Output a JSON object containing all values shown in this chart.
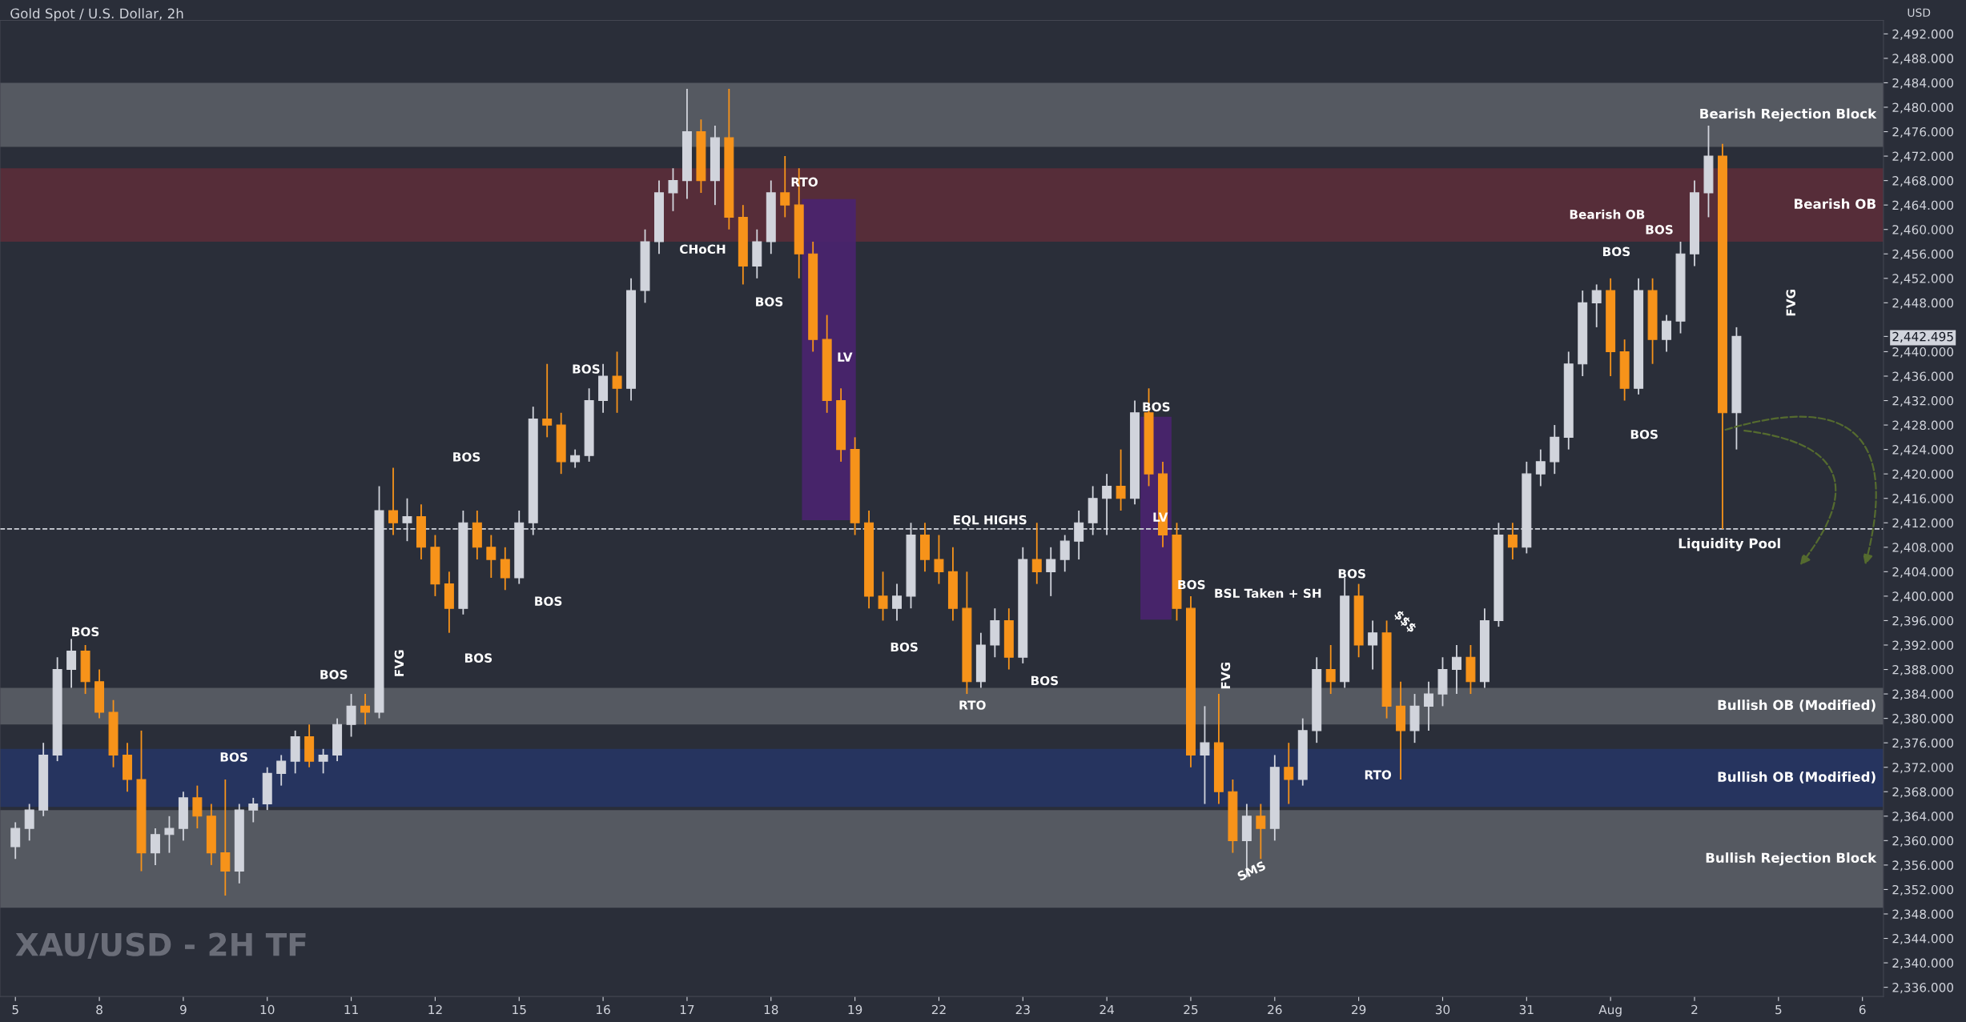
{
  "chart_data": {
    "type": "candlestick",
    "title": "Gold Spot / U.S. Dollar, 2h",
    "ylabel": "USD",
    "categories": [
      "5",
      null,
      null,
      null,
      null,
      null,
      "8",
      null,
      null,
      null,
      null,
      null,
      "9",
      null,
      null,
      null,
      null,
      null,
      "10",
      null,
      null,
      null,
      null,
      null,
      "11",
      null,
      null,
      null,
      null,
      null,
      "12",
      null,
      null,
      null,
      null,
      null,
      "15",
      null,
      null,
      null,
      null,
      null,
      "16",
      null,
      null,
      null,
      null,
      null,
      "17",
      null,
      null,
      null,
      null,
      null,
      "18",
      null,
      null,
      null,
      null,
      null,
      "19",
      null,
      null,
      null,
      null,
      null,
      "22",
      null,
      null,
      null,
      null,
      null,
      "23",
      null,
      null,
      null,
      null,
      null,
      "24",
      null,
      null,
      null,
      null,
      null,
      "25",
      null,
      null,
      null,
      null,
      null,
      "26",
      null,
      null,
      null,
      null,
      null,
      "29",
      null,
      null,
      null,
      null,
      null,
      "30",
      null,
      null,
      null,
      null,
      null,
      "31",
      null,
      null,
      null,
      null,
      null,
      "Aug",
      null,
      null,
      null,
      null,
      null,
      "2",
      null,
      null,
      null,
      null,
      null,
      "5",
      null,
      null,
      null,
      null,
      null,
      "6",
      null
    ],
    "colors": [
      "#d1d4dc",
      "#d1d4dc",
      "#d1d4dc",
      "#d1d4dc",
      "#d1d4dc",
      "#f7931a",
      "#f7931a",
      "#f7931a",
      "#f7931a",
      "#f7931a",
      "#d1d4dc",
      "#d1d4dc",
      "#d1d4dc",
      "#f7931a",
      "#f7931a",
      "#f7931a",
      "#d1d4dc",
      "#d1d4dc",
      "#d1d4dc",
      "#d1d4dc",
      "#d1d4dc",
      "#f7931a",
      "#d1d4dc",
      "#d1d4dc",
      "#d1d4dc",
      "#f7931a",
      "#d1d4dc",
      "#f7931a",
      "#d1d4dc",
      "#f7931a",
      "#f7931a",
      "#f7931a",
      "#d1d4dc",
      "#f7931a",
      "#f7931a",
      "#f7931a",
      "#d1d4dc",
      "#d1d4dc",
      "#f7931a",
      "#f7931a",
      "#d1d4dc",
      "#d1d4dc",
      "#d1d4dc",
      "#f7931a",
      "#d1d4dc",
      "#d1d4dc",
      "#d1d4dc",
      "#d1d4dc",
      "#d1d4dc",
      "#f7931a",
      "#d1d4dc",
      "#f7931a",
      "#f7931a",
      "#d1d4dc",
      "#d1d4dc",
      "#f7931a",
      "#f7931a",
      "#f7931a",
      "#f7931a",
      "#f7931a",
      "#f7931a",
      "#f7931a",
      "#f7931a",
      "#d1d4dc",
      "#d1d4dc",
      "#f7931a",
      "#f7931a",
      "#f7931a",
      "#f7931a",
      "#d1d4dc",
      "#d1d4dc",
      "#f7931a",
      "#d1d4dc",
      "#f7931a",
      "#d1d4dc",
      "#d1d4dc",
      "#d1d4dc",
      "#d1d4dc",
      "#d1d4dc",
      "#f7931a",
      "#d1d4dc",
      "#f7931a",
      "#f7931a",
      "#f7931a",
      "#f7931a",
      "#d1d4dc",
      "#f7931a",
      "#f7931a",
      "#d1d4dc",
      "#f7931a",
      "#d1d4dc",
      "#f7931a",
      "#d1d4dc",
      "#d1d4dc",
      "#f7931a",
      "#d1d4dc",
      "#f7931a",
      "#d1d4dc",
      "#f7931a",
      "#f7931a",
      "#d1d4dc",
      "#d1d4dc",
      "#d1d4dc",
      "#d1d4dc",
      "#f7931a",
      "#d1d4dc",
      "#d1d4dc",
      "#f7931a",
      "#d1d4dc",
      "#d1d4dc",
      "#d1d4dc",
      "#d1d4dc",
      "#d1d4dc",
      "#d1d4dc",
      "#f7931a",
      "#f7931a",
      "#d1d4dc",
      "#f7931a",
      "#d1d4dc",
      "#d1d4dc",
      "#d1d4dc",
      "#d1d4dc",
      "#f7931a",
      "#d1d4dc",
      null,
      null,
      null,
      null,
      null,
      null,
      null,
      null,
      null,
      null
    ],
    "ohlc": [
      [
        2359,
        2363,
        2357,
        2362
      ],
      [
        2362,
        2366,
        2360,
        2365
      ],
      [
        2365,
        2376,
        2364,
        2374
      ],
      [
        2374,
        2390,
        2373,
        2388
      ],
      [
        2388,
        2393,
        2385,
        2391
      ],
      [
        2391,
        2392,
        2384,
        2386
      ],
      [
        2386,
        2388,
        2380,
        2381
      ],
      [
        2381,
        2383,
        2372,
        2374
      ],
      [
        2374,
        2376,
        2368,
        2370
      ],
      [
        2370,
        2378,
        2355,
        2358
      ],
      [
        2358,
        2362,
        2356,
        2361
      ],
      [
        2361,
        2364,
        2358,
        2362
      ],
      [
        2362,
        2368,
        2360,
        2367
      ],
      [
        2367,
        2369,
        2362,
        2364
      ],
      [
        2364,
        2366,
        2356,
        2358
      ],
      [
        2358,
        2370,
        2351,
        2355
      ],
      [
        2355,
        2366,
        2353,
        2365
      ],
      [
        2365,
        2367,
        2363,
        2366
      ],
      [
        2366,
        2372,
        2365,
        2371
      ],
      [
        2371,
        2374,
        2369,
        2373
      ],
      [
        2373,
        2378,
        2371,
        2377
      ],
      [
        2377,
        2379,
        2372,
        2373
      ],
      [
        2373,
        2375,
        2371,
        2374
      ],
      [
        2374,
        2380,
        2373,
        2379
      ],
      [
        2379,
        2384,
        2377,
        2382
      ],
      [
        2382,
        2384,
        2379,
        2381
      ],
      [
        2381,
        2418,
        2380,
        2414
      ],
      [
        2414,
        2421,
        2410,
        2412
      ],
      [
        2412,
        2416,
        2409,
        2413
      ],
      [
        2413,
        2415,
        2406,
        2408
      ],
      [
        2408,
        2410,
        2400,
        2402
      ],
      [
        2402,
        2404,
        2394,
        2398
      ],
      [
        2398,
        2414,
        2397,
        2412
      ],
      [
        2412,
        2414,
        2406,
        2408
      ],
      [
        2408,
        2410,
        2403,
        2406
      ],
      [
        2406,
        2408,
        2401,
        2403
      ],
      [
        2403,
        2414,
        2402,
        2412
      ],
      [
        2412,
        2431,
        2410,
        2429
      ],
      [
        2429,
        2438,
        2426,
        2428
      ],
      [
        2428,
        2430,
        2420,
        2422
      ],
      [
        2422,
        2424,
        2421,
        2423
      ],
      [
        2423,
        2434,
        2422,
        2432
      ],
      [
        2432,
        2438,
        2430,
        2436
      ],
      [
        2436,
        2440,
        2430,
        2434
      ],
      [
        2434,
        2452,
        2432,
        2450
      ],
      [
        2450,
        2460,
        2448,
        2458
      ],
      [
        2458,
        2468,
        2456,
        2466
      ],
      [
        2466,
        2470,
        2463,
        2468
      ],
      [
        2468,
        2483,
        2465,
        2476
      ],
      [
        2476,
        2478,
        2466,
        2468
      ],
      [
        2468,
        2477,
        2464,
        2475
      ],
      [
        2475,
        2483,
        2460,
        2462
      ],
      [
        2462,
        2464,
        2451,
        2454
      ],
      [
        2454,
        2460,
        2452,
        2458
      ],
      [
        2458,
        2468,
        2456,
        2466
      ],
      [
        2466,
        2472,
        2462,
        2464
      ],
      [
        2464,
        2470,
        2452,
        2456
      ],
      [
        2456,
        2458,
        2440,
        2442
      ],
      [
        2442,
        2446,
        2430,
        2432
      ],
      [
        2432,
        2434,
        2422,
        2424
      ],
      [
        2424,
        2426,
        2410,
        2412
      ],
      [
        2412,
        2414,
        2398,
        2400
      ],
      [
        2400,
        2404,
        2396,
        2398
      ],
      [
        2398,
        2402,
        2396,
        2400
      ],
      [
        2400,
        2412,
        2398,
        2410
      ],
      [
        2410,
        2412,
        2404,
        2406
      ],
      [
        2406,
        2410,
        2402,
        2404
      ],
      [
        2404,
        2408,
        2396,
        2398
      ],
      [
        2398,
        2404,
        2384,
        2386
      ],
      [
        2386,
        2394,
        2385,
        2392
      ],
      [
        2392,
        2398,
        2390,
        2396
      ],
      [
        2396,
        2398,
        2388,
        2390
      ],
      [
        2390,
        2408,
        2389,
        2406
      ],
      [
        2406,
        2412,
        2402,
        2404
      ],
      [
        2404,
        2408,
        2400,
        2406
      ],
      [
        2406,
        2410,
        2404,
        2409
      ],
      [
        2409,
        2414,
        2406,
        2412
      ],
      [
        2412,
        2418,
        2410,
        2416
      ],
      [
        2416,
        2420,
        2410,
        2418
      ],
      [
        2418,
        2424,
        2414,
        2416
      ],
      [
        2416,
        2432,
        2415,
        2430
      ],
      [
        2430,
        2434,
        2418,
        2420
      ],
      [
        2420,
        2422,
        2408,
        2410
      ],
      [
        2410,
        2412,
        2396,
        2398
      ],
      [
        2398,
        2400,
        2372,
        2374
      ],
      [
        2374,
        2382,
        2366,
        2376
      ],
      [
        2376,
        2384,
        2366,
        2368
      ],
      [
        2368,
        2370,
        2358,
        2360
      ],
      [
        2360,
        2366,
        2354,
        2364
      ],
      [
        2364,
        2366,
        2357,
        2362
      ],
      [
        2362,
        2374,
        2360,
        2372
      ],
      [
        2372,
        2376,
        2366,
        2370
      ],
      [
        2370,
        2380,
        2369,
        2378
      ],
      [
        2378,
        2390,
        2376,
        2388
      ],
      [
        2388,
        2392,
        2384,
        2386
      ],
      [
        2386,
        2403,
        2385,
        2400
      ],
      [
        2400,
        2402,
        2390,
        2392
      ],
      [
        2392,
        2396,
        2388,
        2394
      ],
      [
        2394,
        2396,
        2380,
        2382
      ],
      [
        2382,
        2386,
        2370,
        2378
      ],
      [
        2378,
        2384,
        2376,
        2382
      ],
      [
        2382,
        2386,
        2378,
        2384
      ],
      [
        2384,
        2390,
        2382,
        2388
      ],
      [
        2388,
        2392,
        2384,
        2390
      ],
      [
        2390,
        2392,
        2384,
        2386
      ],
      [
        2386,
        2398,
        2385,
        2396
      ],
      [
        2396,
        2412,
        2395,
        2410
      ],
      [
        2410,
        2412,
        2406,
        2408
      ],
      [
        2408,
        2422,
        2407,
        2420
      ],
      [
        2420,
        2424,
        2418,
        2422
      ],
      [
        2422,
        2428,
        2420,
        2426
      ],
      [
        2426,
        2440,
        2424,
        2438
      ],
      [
        2438,
        2450,
        2436,
        2448
      ],
      [
        2448,
        2451,
        2444,
        2450
      ],
      [
        2450,
        2452,
        2436,
        2440
      ],
      [
        2440,
        2442,
        2432,
        2434
      ],
      [
        2434,
        2452,
        2433,
        2450
      ],
      [
        2450,
        2452,
        2438,
        2442
      ],
      [
        2442,
        2446,
        2440,
        2445
      ],
      [
        2445,
        2458,
        2443,
        2456
      ],
      [
        2456,
        2468,
        2454,
        2466
      ],
      [
        2466,
        2477,
        2462,
        2472
      ],
      [
        2472,
        2474,
        2411,
        2430
      ],
      [
        2430,
        2444,
        2424,
        2442.495
      ],
      null,
      null,
      null,
      null,
      null,
      null,
      null,
      null,
      null,
      null
    ],
    "ylim": [
      2334.5,
      2494.2
    ],
    "yticks": [
      {
        "value": 2336,
        "label": "2,336.000"
      },
      {
        "value": 2340,
        "label": "2,340.000"
      },
      {
        "value": 2344,
        "label": "2,344.000"
      },
      {
        "value": 2348,
        "label": "2,348.000"
      },
      {
        "value": 2352,
        "label": "2,352.000"
      },
      {
        "value": 2356,
        "label": "2,356.000"
      },
      {
        "value": 2360,
        "label": "2,360.000"
      },
      {
        "value": 2364,
        "label": "2,364.000"
      },
      {
        "value": 2368,
        "label": "2,368.000"
      },
      {
        "value": 2372,
        "label": "2,372.000"
      },
      {
        "value": 2376,
        "label": "2,376.000"
      },
      {
        "value": 2380,
        "label": "2,380.000"
      },
      {
        "value": 2384,
        "label": "2,384.000"
      },
      {
        "value": 2388,
        "label": "2,388.000"
      },
      {
        "value": 2392,
        "label": "2,392.000"
      },
      {
        "value": 2396,
        "label": "2,396.000"
      },
      {
        "value": 2400,
        "label": "2,400.000"
      },
      {
        "value": 2404,
        "label": "2,404.000"
      },
      {
        "value": 2408,
        "label": "2,408.000"
      },
      {
        "value": 2412,
        "label": "2,412.000"
      },
      {
        "value": 2416,
        "label": "2,416.000"
      },
      {
        "value": 2420,
        "label": "2,420.000"
      },
      {
        "value": 2424,
        "label": "2,424.000"
      },
      {
        "value": 2428,
        "label": "2,428.000"
      },
      {
        "value": 2432,
        "label": "2,432.000"
      },
      {
        "value": 2436,
        "label": "2,436.000"
      },
      {
        "value": 2440,
        "label": "2,440.000"
      },
      {
        "value": 2448,
        "label": "2,448.000"
      },
      {
        "value": 2452,
        "label": "2,452.000"
      },
      {
        "value": 2456,
        "label": "2,456.000"
      },
      {
        "value": 2460,
        "label": "2,460.000"
      },
      {
        "value": 2464,
        "label": "2,464.000"
      },
      {
        "value": 2468,
        "label": "2,468.000"
      },
      {
        "value": 2472,
        "label": "2,472.000"
      },
      {
        "value": 2476,
        "label": "2,476.000"
      },
      {
        "value": 2480,
        "label": "2,480.000"
      },
      {
        "value": 2484,
        "label": "2,484.000"
      },
      {
        "value": 2488,
        "label": "2,488.000"
      },
      {
        "value": 2492,
        "label": "2,492.000"
      },
      {
        "value": 2442.495,
        "label": "2,442.495"
      }
    ],
    "bands": [
      {
        "axis": "y",
        "from": 2473.5,
        "to": 2484,
        "label": "Bearish Rejection Block",
        "color": "#5d6069"
      },
      {
        "axis": "y",
        "from": 2458,
        "to": 2470,
        "label": "Bearish OB",
        "color": "#5e2d3a"
      },
      {
        "axis": "y",
        "from": 2379,
        "to": 2385,
        "label": "Bullish OB (Modified)",
        "color": "#5d6069"
      },
      {
        "axis": "y",
        "from": 2365.5,
        "to": 2375,
        "label": "Bullish OB (Modified)",
        "color": "#263566"
      },
      {
        "axis": "y",
        "from": 2349,
        "to": 2365,
        "label": "Bullish Rejection Block",
        "color": "#5d6069"
      }
    ],
    "ref_lines": [
      {
        "axis": "y",
        "value": 2411,
        "label": "Liquidity Pool",
        "color": "#d1d4dc",
        "line_style": "dashed"
      }
    ],
    "annotations": [
      "BOS",
      "BOS",
      "BOS",
      "FVG",
      "BOS",
      "BOS",
      "BOS",
      "BOS",
      "CHoCH",
      "RTO",
      "BOS",
      "EQL HIGHS",
      "BOS",
      "RTO",
      "BOS",
      "BOS",
      "BOS",
      "BSL Taken + SH",
      "FVG",
      "SMS",
      "BOS",
      "$$$",
      "RTO",
      "Bearish OB",
      "BOS",
      "BOS",
      "BOS",
      "FVG",
      "LV",
      "LV",
      "XAU/USD - 2H TF"
    ],
    "grid": false
  }
}
